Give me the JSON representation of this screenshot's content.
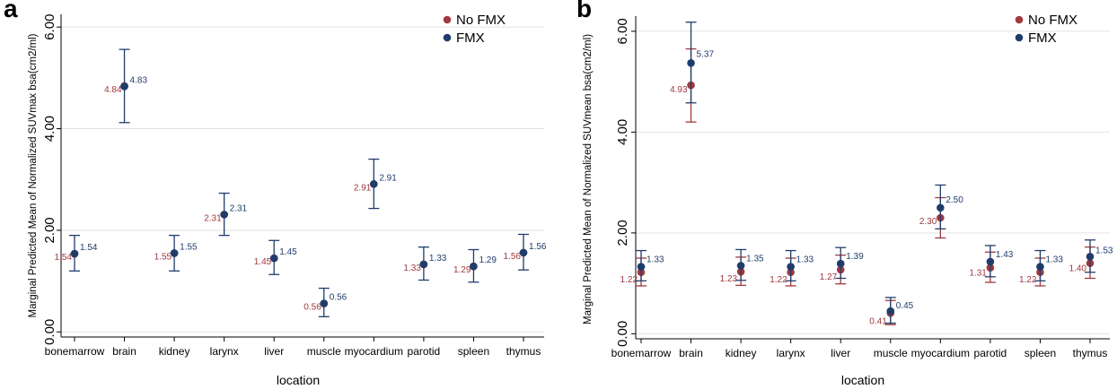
{
  "chart_data": [
    {
      "panel": "a",
      "type": "scatter",
      "xlabel": "location",
      "ylabel": "Marginal Predicted Mean of Normalized SUVmax bsa(cm2/ml)",
      "categories": [
        "bonemarrow",
        "brain",
        "kidney",
        "larynx",
        "liver",
        "muscle",
        "myocardium",
        "parotid",
        "spleen",
        "thymus"
      ],
      "ylim": [
        -0.1,
        6.25
      ],
      "yticks": [
        0,
        2,
        4,
        6
      ],
      "ytick_labels": [
        "0.00",
        "2.00",
        "4.00",
        "6.00"
      ],
      "grid": true,
      "legend_position": "top-right",
      "series": [
        {
          "name": "No FMX",
          "color": "#a0393f",
          "values": [
            1.54,
            4.84,
            1.55,
            2.31,
            1.45,
            0.56,
            2.91,
            1.33,
            1.29,
            1.56
          ],
          "labels": [
            "1.54",
            "4.84",
            "1.55",
            "2.31",
            "1.45",
            "0.56",
            "2.91",
            "1.33",
            "1.29",
            "1.56"
          ],
          "ci_low": [
            1.54,
            4.84,
            1.55,
            2.31,
            1.45,
            0.56,
            2.91,
            1.33,
            1.29,
            1.56
          ],
          "ci_high": [
            1.54,
            4.84,
            1.55,
            2.31,
            1.45,
            0.56,
            2.91,
            1.33,
            1.29,
            1.56
          ]
        },
        {
          "name": "FMX",
          "color": "#1f3d6b",
          "values": [
            1.54,
            4.83,
            1.55,
            2.31,
            1.45,
            0.56,
            2.91,
            1.33,
            1.29,
            1.56
          ],
          "labels": [
            "1.54",
            "4.83",
            "1.55",
            "2.31",
            "1.45",
            "0.56",
            "2.91",
            "1.33",
            "1.29",
            "1.56"
          ],
          "ci_low": [
            1.2,
            4.12,
            1.2,
            1.9,
            1.13,
            0.3,
            2.43,
            1.02,
            0.98,
            1.22
          ],
          "ci_high": [
            1.9,
            5.56,
            1.9,
            2.73,
            1.8,
            0.86,
            3.4,
            1.67,
            1.62,
            1.92
          ]
        }
      ]
    },
    {
      "panel": "b",
      "type": "scatter",
      "xlabel": "location",
      "ylabel": "Marginal Predicted Mean of Normalized SUVmean bsa(cm2/ml)",
      "categories": [
        "bonemarrow",
        "brain",
        "kidney",
        "larynx",
        "liver",
        "muscle",
        "myocardium",
        "parotid",
        "spleen",
        "thymus"
      ],
      "ylim": [
        -0.1,
        6.3
      ],
      "yticks": [
        0,
        2,
        4,
        6
      ],
      "ytick_labels": [
        "0.00",
        "2.00",
        "4.00",
        "6.00"
      ],
      "grid": true,
      "legend_position": "top-right",
      "series": [
        {
          "name": "No FMX",
          "color": "#a0393f",
          "values": [
            1.22,
            4.93,
            1.23,
            1.22,
            1.27,
            0.41,
            2.3,
            1.31,
            1.22,
            1.4
          ],
          "labels": [
            "1.22",
            "4.93",
            "1.23",
            "1.22",
            "1.27",
            "0.41",
            "2.30",
            "1.31",
            "1.22",
            "1.40"
          ],
          "ci_low": [
            0.95,
            4.2,
            0.96,
            0.95,
            0.99,
            0.18,
            1.9,
            1.02,
            0.95,
            1.1
          ],
          "ci_high": [
            1.5,
            5.65,
            1.52,
            1.5,
            1.56,
            0.66,
            2.7,
            1.62,
            1.5,
            1.72
          ]
        },
        {
          "name": "FMX",
          "color": "#1f3d6b",
          "values": [
            1.33,
            5.37,
            1.35,
            1.33,
            1.39,
            0.45,
            2.5,
            1.43,
            1.33,
            1.53
          ],
          "labels": [
            "1.33",
            "5.37",
            "1.35",
            "1.33",
            "1.39",
            "0.45",
            "2.50",
            "1.43",
            "1.33",
            "1.53"
          ],
          "ci_low": [
            1.05,
            4.58,
            1.06,
            1.05,
            1.1,
            0.21,
            2.08,
            1.13,
            1.05,
            1.22
          ],
          "ci_high": [
            1.65,
            6.18,
            1.67,
            1.65,
            1.71,
            0.72,
            2.95,
            1.75,
            1.65,
            1.86
          ]
        }
      ]
    }
  ]
}
